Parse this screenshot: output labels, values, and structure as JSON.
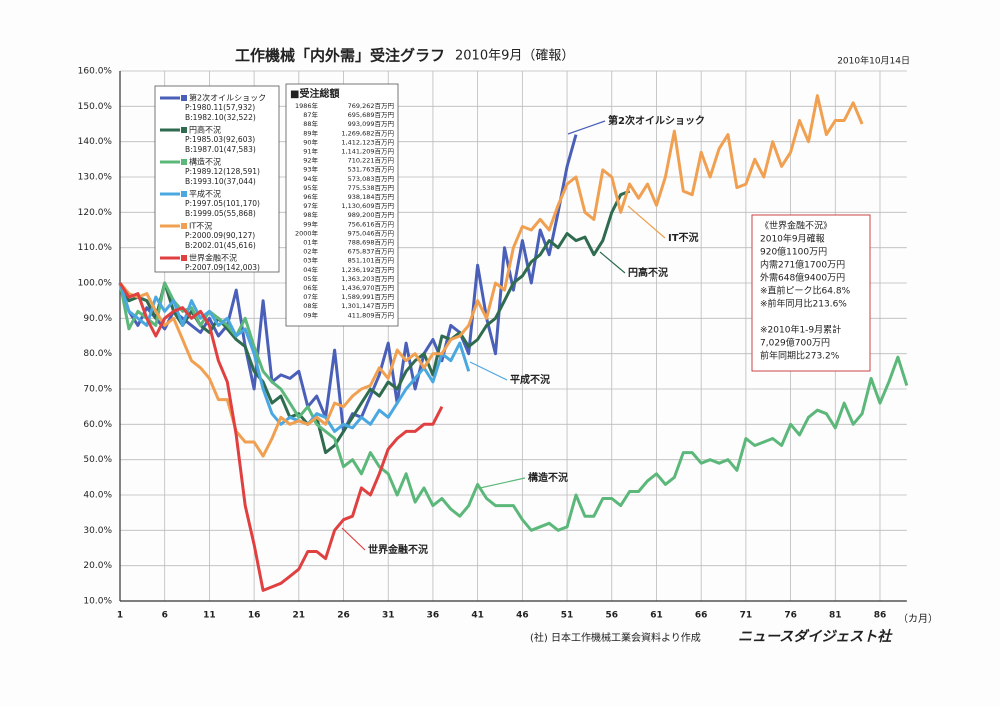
{
  "chart_data": {
    "type": "line",
    "title": "工作機械「内外需」受注グラフ",
    "subtitle": "2010年9月（確報）",
    "date": "2010年10月14日",
    "x_unit": "（カ月）",
    "source": "(社) 日本工作機械工業会資料より作成",
    "publisher": "ニュースダイジェスト社",
    "grid": true,
    "xlim": [
      1,
      89
    ],
    "xticks": [
      1,
      6,
      11,
      16,
      21,
      26,
      31,
      36,
      41,
      46,
      51,
      56,
      61,
      66,
      71,
      76,
      81,
      86
    ],
    "ylim": [
      10,
      160
    ],
    "yticks": [
      {
        "value": 10,
        "label": "10.0%"
      },
      {
        "value": 20,
        "label": "20.0%"
      },
      {
        "value": 30,
        "label": "30.0%"
      },
      {
        "value": 40,
        "label": "40.0%"
      },
      {
        "value": 50,
        "label": "50.0%"
      },
      {
        "value": 60,
        "label": "60.0%"
      },
      {
        "value": 70,
        "label": "70.0%"
      },
      {
        "value": 80,
        "label": "80.0%"
      },
      {
        "value": 90,
        "label": "90.0%"
      },
      {
        "value": 100,
        "label": "100.0%"
      },
      {
        "value": 110,
        "label": "110.0%"
      },
      {
        "value": 120,
        "label": "120.0%"
      },
      {
        "value": 130,
        "label": "130.0%"
      },
      {
        "value": 140,
        "label": "140.0%"
      },
      {
        "value": 150,
        "label": "150.0%"
      },
      {
        "value": 160,
        "label": "160.0%"
      }
    ],
    "x": [
      1,
      2,
      3,
      4,
      5,
      6,
      7,
      8,
      9,
      10,
      11,
      12,
      13,
      14,
      15,
      16,
      17,
      18,
      19,
      20,
      21,
      22,
      23,
      24,
      25,
      26,
      27,
      28,
      29,
      30,
      31,
      32,
      33,
      34,
      35,
      36,
      37,
      38,
      39,
      40,
      41,
      42,
      43,
      44,
      45,
      46,
      47,
      48,
      49,
      50,
      51,
      52,
      53,
      54,
      55,
      56,
      57,
      58,
      59,
      60,
      61,
      62,
      63,
      64,
      65,
      66,
      67,
      68,
      69,
      70,
      71,
      72,
      73,
      74,
      75,
      76,
      77,
      78,
      79,
      80,
      81,
      82,
      83,
      84,
      85,
      86,
      87,
      88,
      89
    ],
    "series": [
      {
        "name": "第2次オイルショック",
        "peak": "P:1980.11(57,932)",
        "bottom": "B:1982.10(32,522)",
        "color": "#4a5fb8",
        "values": [
          100,
          92,
          88,
          93,
          90,
          87,
          92,
          90,
          88,
          86,
          90,
          85,
          88,
          98,
          82,
          70,
          95,
          72,
          74,
          73,
          75,
          65,
          68,
          62,
          81,
          58,
          63,
          62,
          68,
          74,
          83,
          66,
          83,
          70,
          80,
          84,
          78,
          88,
          86,
          80,
          105,
          90,
          80,
          110,
          98,
          112,
          100,
          115,
          108,
          120,
          133,
          142,
          null,
          null,
          null,
          null,
          null,
          null,
          null,
          null,
          null,
          null,
          null,
          null,
          null,
          null,
          null,
          null,
          null,
          null,
          null,
          null,
          null,
          null,
          null,
          null,
          null,
          null,
          null,
          null,
          null,
          null,
          null,
          null,
          null,
          null,
          null,
          null,
          null
        ]
      },
      {
        "name": "円高不況",
        "peak": "P:1985.03(92,603)",
        "bottom": "B:1987.01(47,583)",
        "color": "#2e6b4f",
        "values": [
          100,
          95,
          96,
          95,
          90,
          100,
          92,
          88,
          92,
          88,
          86,
          90,
          87,
          84,
          82,
          75,
          72,
          66,
          68,
          62,
          63,
          60,
          62,
          52,
          54,
          58,
          62,
          66,
          70,
          68,
          72,
          70,
          75,
          78,
          80,
          74,
          85,
          84,
          86,
          82,
          84,
          88,
          90,
          95,
          100,
          102,
          106,
          108,
          112,
          110,
          114,
          112,
          113,
          108,
          112,
          120,
          125,
          126,
          null,
          null,
          null,
          null,
          null,
          null,
          null,
          null,
          null,
          null,
          null,
          null,
          null,
          null,
          null,
          null,
          null,
          null,
          null,
          null,
          null,
          null,
          null,
          null,
          null,
          null,
          null,
          null,
          null,
          null,
          null
        ]
      },
      {
        "name": "構造不況",
        "peak": "P:1989.12(128,591)",
        "bottom": "B:1993.10(37,044)",
        "color": "#5cb87a",
        "values": [
          100,
          87,
          92,
          90,
          88,
          100,
          95,
          92,
          93,
          88,
          92,
          90,
          88,
          85,
          90,
          82,
          75,
          72,
          70,
          66,
          62,
          65,
          60,
          58,
          56,
          48,
          50,
          46,
          52,
          48,
          46,
          40,
          46,
          38,
          42,
          37,
          39,
          36,
          34,
          37,
          43,
          39,
          37,
          37,
          37,
          33,
          30,
          31,
          32,
          30,
          31,
          40,
          34,
          34,
          39,
          39,
          37,
          41,
          41,
          44,
          46,
          43,
          45,
          52,
          52,
          49,
          50,
          49,
          50,
          47,
          56,
          54,
          55,
          56,
          54,
          60,
          57,
          62,
          64,
          63,
          59,
          66,
          60,
          63,
          73,
          66,
          72,
          79,
          71
        ]
      },
      {
        "name": "平成不況",
        "peak": "P:1997.05(101,170)",
        "bottom": "B:1999.05(55,868)",
        "color": "#4aa8e0",
        "values": [
          100,
          92,
          90,
          88,
          96,
          92,
          95,
          88,
          95,
          90,
          92,
          88,
          90,
          85,
          87,
          80,
          70,
          63,
          60,
          62,
          61,
          60,
          63,
          62,
          58,
          60,
          59,
          62,
          60,
          64,
          62,
          66,
          70,
          73,
          76,
          72,
          80,
          78,
          83,
          75,
          null,
          null,
          null,
          null,
          null,
          null,
          null,
          null,
          null,
          null,
          null,
          null,
          null,
          null,
          null,
          null,
          null,
          null,
          null,
          null,
          null,
          null,
          null,
          null,
          null,
          null,
          null,
          null,
          null,
          null,
          null,
          null,
          null,
          null,
          null,
          null,
          null,
          null,
          null,
          null,
          null,
          null,
          null,
          null,
          null,
          null,
          null,
          null,
          null
        ]
      },
      {
        "name": "IT不況",
        "peak": "P:2000.09(90,127)",
        "bottom": "B:2002.01(45,616)",
        "color": "#f0a050",
        "values": [
          100,
          97,
          96,
          97,
          92,
          88,
          90,
          84,
          78,
          76,
          73,
          67,
          67,
          58,
          55,
          55,
          51,
          56,
          62,
          60,
          61,
          60,
          62,
          60,
          66,
          65,
          68,
          70,
          71,
          76,
          73,
          81,
          78,
          80,
          76,
          80,
          80,
          84,
          85,
          88,
          95,
          90,
          100,
          98,
          110,
          116,
          115,
          118,
          115,
          122,
          128,
          130,
          120,
          118,
          132,
          130,
          120,
          128,
          124,
          128,
          122,
          130,
          143,
          126,
          125,
          137,
          130,
          138,
          142,
          127,
          128,
          135,
          130,
          140,
          133,
          137,
          146,
          140,
          153,
          142,
          146,
          146,
          151,
          145,
          null,
          null,
          null,
          null,
          null
        ]
      },
      {
        "name": "世界金融不況",
        "peak": "P:2007.09(142,003)",
        "color": "#e04040",
        "values": [
          100,
          96,
          97,
          90,
          85,
          90,
          92,
          93,
          90,
          92,
          88,
          78,
          72,
          57,
          37,
          26,
          13,
          14,
          15,
          17,
          19,
          24,
          24,
          22,
          30,
          33,
          34,
          42,
          40,
          46,
          53,
          56,
          58,
          58,
          60,
          60,
          65,
          null,
          null,
          null,
          null,
          null,
          null,
          null,
          null,
          null,
          null,
          null,
          null,
          null,
          null,
          null,
          null,
          null,
          null,
          null,
          null,
          null,
          null,
          null,
          null,
          null,
          null,
          null,
          null,
          null,
          null,
          null,
          null,
          null,
          null,
          null,
          null,
          null,
          null,
          null,
          null,
          null,
          null,
          null,
          null,
          null,
          null,
          null,
          null,
          null,
          null,
          null,
          null
        ]
      }
    ],
    "annotations": [
      {
        "text": "第2次オイルショック",
        "series": 0
      },
      {
        "text": "円高不況",
        "series": 1
      },
      {
        "text": "構造不況",
        "series": 2
      },
      {
        "text": "平成不況",
        "series": 3
      },
      {
        "text": "IT不況",
        "series": 4
      },
      {
        "text": "世界金融不況",
        "series": 5
      }
    ],
    "totals_table": {
      "title": "■受注総額",
      "rows": [
        [
          "1986年",
          "769,262百万円"
        ],
        [
          "87年",
          "695,689百万円"
        ],
        [
          "88年",
          "993,099百万円"
        ],
        [
          "89年",
          "1,269,682百万円"
        ],
        [
          "90年",
          "1,412,123百万円"
        ],
        [
          "91年",
          "1,141,209百万円"
        ],
        [
          "92年",
          "710,221百万円"
        ],
        [
          "93年",
          "531,763百万円"
        ],
        [
          "94年",
          "573,083百万円"
        ],
        [
          "95年",
          "775,538百万円"
        ],
        [
          "96年",
          "938,184百万円"
        ],
        [
          "97年",
          "1,130,609百万円"
        ],
        [
          "98年",
          "989,200百万円"
        ],
        [
          "99年",
          "756,616百万円"
        ],
        [
          "2000年",
          "975,046百万円"
        ],
        [
          "01年",
          "788,698百万円"
        ],
        [
          "02年",
          "675,837百万円"
        ],
        [
          "03年",
          "851,101百万円"
        ],
        [
          "04年",
          "1,236,192百万円"
        ],
        [
          "05年",
          "1,363,203百万円"
        ],
        [
          "06年",
          "1,436,970百万円"
        ],
        [
          "07年",
          "1,589,991百万円"
        ],
        [
          "08年",
          "1,301,147百万円"
        ],
        [
          "09年",
          "411,809百万円"
        ]
      ]
    },
    "note_box": [
      "《世界金融不況》",
      "2010年9月確報",
      "920億1100万円",
      "内需271億1700万円",
      "外需648億9400万円",
      "※直前ピーク比64.8%",
      "※前年同月比213.6%",
      "",
      "※2010年1-9月累計",
      "7,029億700万円",
      "前年同期比273.2%"
    ]
  }
}
